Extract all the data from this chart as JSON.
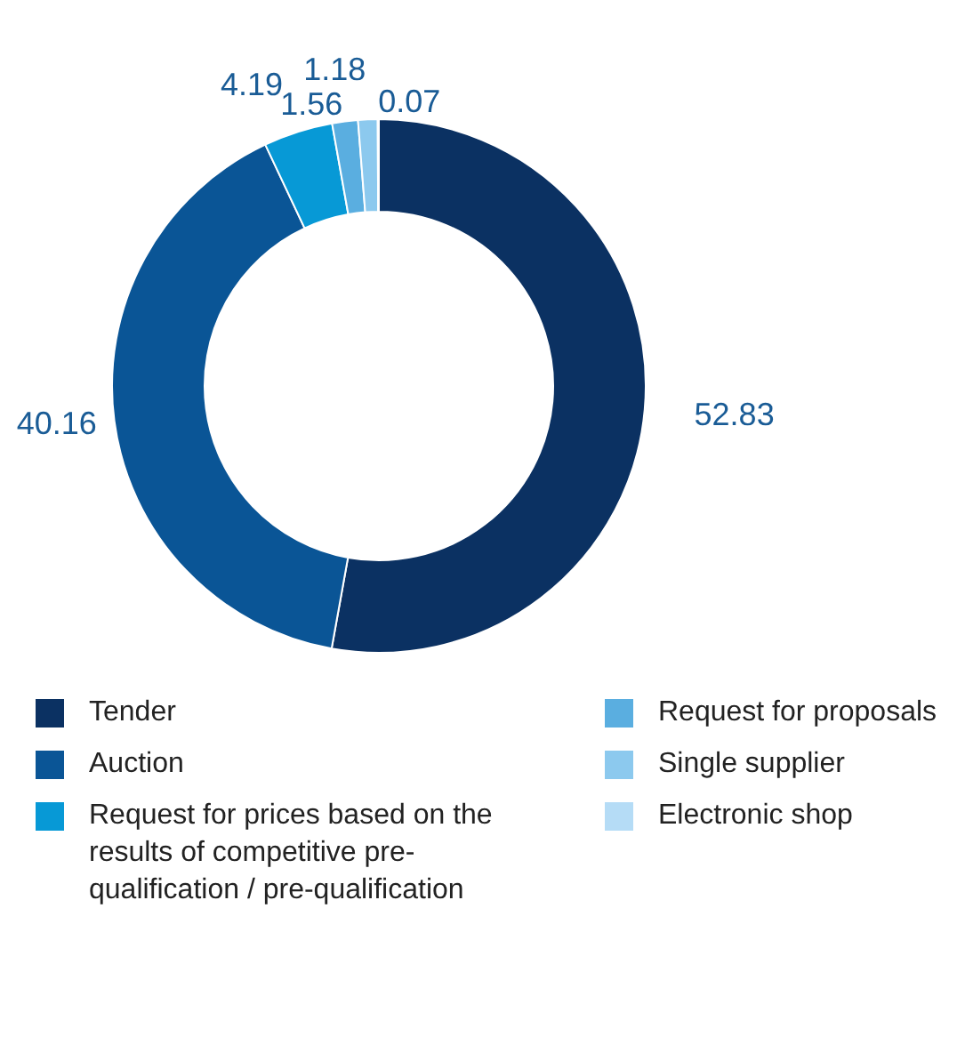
{
  "chart_data": {
    "type": "donut",
    "categories": [
      "Tender",
      "Auction",
      "Request for prices based on the results of competitive pre-qualification / pre-qualification",
      "Request for proposals",
      "Single supplier",
      "Electronic shop"
    ],
    "values": [
      52.83,
      40.16,
      4.19,
      1.56,
      1.18,
      0.07
    ],
    "colors": [
      "#0b3162",
      "#0a5596",
      "#0799d6",
      "#5aaee0",
      "#8cc9ee",
      "#b5dcf6"
    ],
    "data_labels": true,
    "legend": "bottom"
  }
}
